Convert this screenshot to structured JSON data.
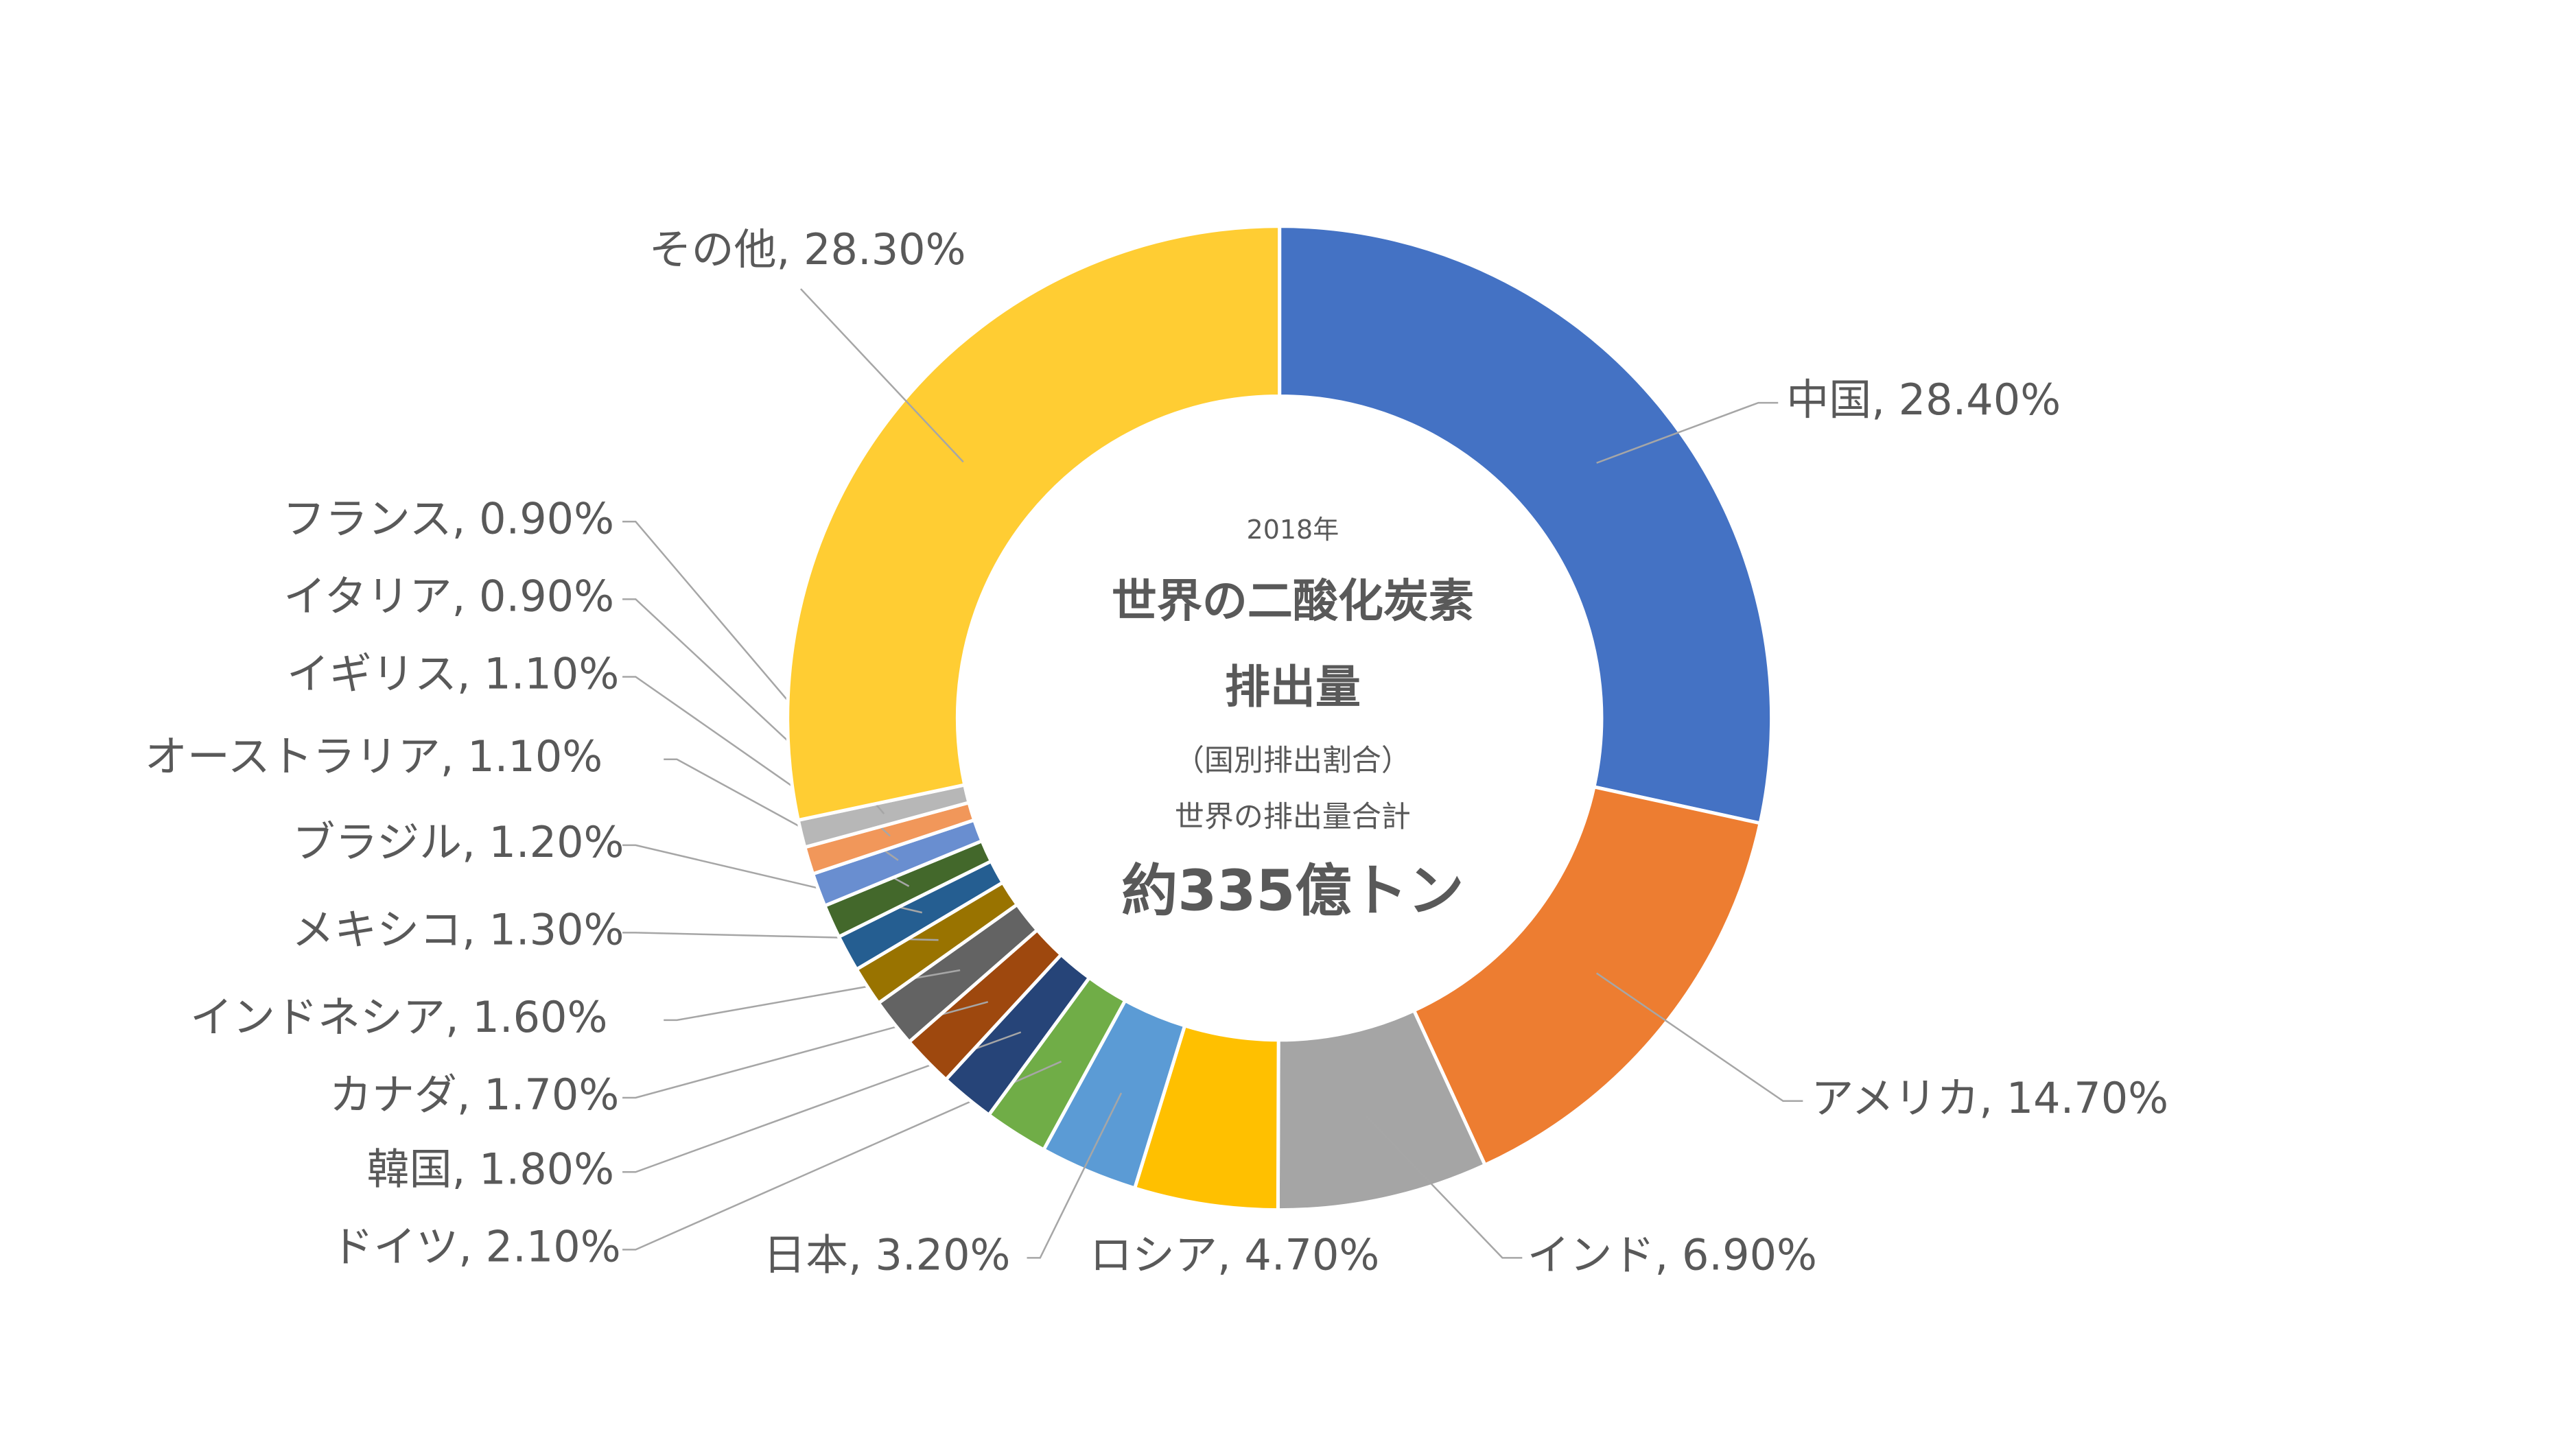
{
  "chart_data": {
    "type": "donut",
    "center_text": [
      "2018年",
      "世界の二酸化炭素",
      "排出量",
      "（国別排出割合）",
      "世界の排出量合計",
      "約335億トン"
    ],
    "values": [
      28.4,
      14.7,
      6.9,
      4.7,
      3.2,
      2.1,
      1.8,
      1.7,
      1.6,
      1.3,
      1.2,
      1.1,
      1.1,
      0.9,
      0.9,
      28.3
    ],
    "value_labels": [
      "中国, 28.40%",
      "アメリカ, 14.70%",
      "インド, 6.90%",
      "ロシア, 4.70%",
      "日本, 3.20%",
      "ドイツ, 2.10%",
      "韓国, 1.80%",
      "カナダ, 1.70%",
      "インドネシア, 1.60%",
      "メキシコ, 1.30%",
      "ブラジル, 1.20%",
      "オーストラリア, 1.10%",
      "イギリス, 1.10%",
      "イタリア, 0.90%",
      "フランス, 0.90%",
      "その他, 28.30%"
    ],
    "colors": [
      "#4472c4",
      "#ed7d31",
      "#a5a5a5",
      "#ffc000",
      "#5b9bd5",
      "#70ad47",
      "#264478",
      "#9e480e",
      "#636363",
      "#997300",
      "#255e91",
      "#43682b",
      "#698ed0",
      "#f1975a",
      "#b7b7b7",
      "#ffcd33"
    ]
  }
}
